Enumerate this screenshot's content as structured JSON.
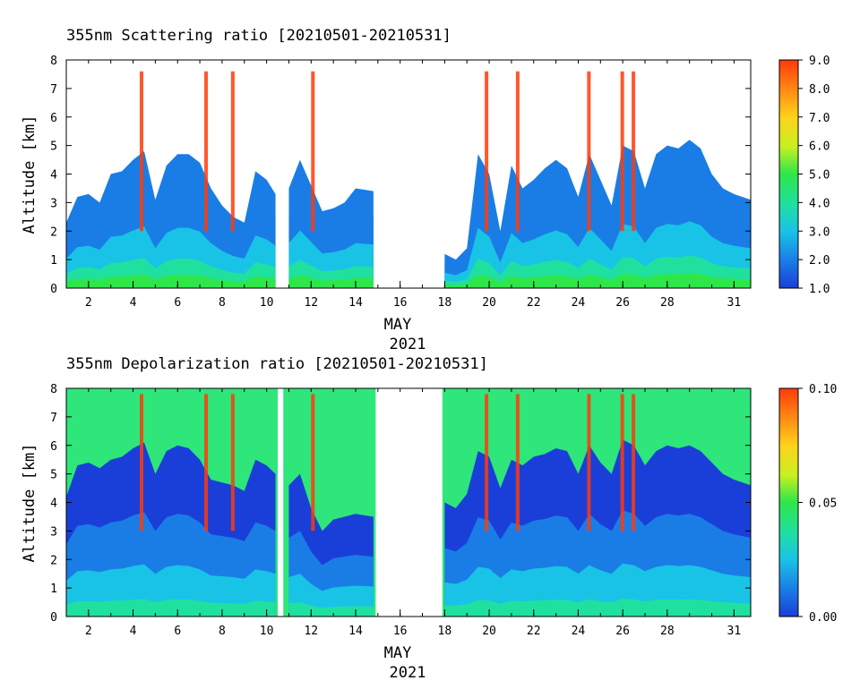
{
  "chart_data": [
    {
      "type": "heatmap",
      "title": "355nm Scattering ratio [20210501-20210531]",
      "ylabel": "Altitude [km]",
      "xlabel": "MAY",
      "xlabel2": "2021",
      "xlim": [
        1,
        31.75
      ],
      "ylim": [
        0,
        8
      ],
      "x_ticks": [
        2,
        4,
        6,
        8,
        10,
        12,
        14,
        16,
        18,
        20,
        22,
        24,
        26,
        28,
        31
      ],
      "y_ticks": [
        0,
        1,
        2,
        3,
        4,
        5,
        6,
        7,
        8
      ],
      "colorbar": {
        "min": 1.0,
        "max": 9.0,
        "ticks": [
          "1.0",
          "2.0",
          "3.0",
          "4.0",
          "5.0",
          "6.0",
          "7.0",
          "8.0",
          "9.0"
        ],
        "colors": [
          "#1a3fd9",
          "#1a7de6",
          "#19c3e6",
          "#20e0a0",
          "#2ee64a",
          "#c8f020",
          "#ffd21a",
          "#ff8a14",
          "#ff3a0a"
        ]
      },
      "no_data_days": [
        [
          10.5,
          10.75
        ],
        [
          14.9,
          17.9
        ]
      ],
      "cloud_top_km": [
        {
          "x": 1.0,
          "top": 2.3
        },
        {
          "x": 1.5,
          "top": 3.2
        },
        {
          "x": 2.0,
          "top": 3.3
        },
        {
          "x": 2.5,
          "top": 3.0
        },
        {
          "x": 3.0,
          "top": 4.0
        },
        {
          "x": 3.5,
          "top": 4.1
        },
        {
          "x": 4.0,
          "top": 4.5
        },
        {
          "x": 4.5,
          "top": 4.8
        },
        {
          "x": 5.0,
          "top": 3.1
        },
        {
          "x": 5.5,
          "top": 4.3
        },
        {
          "x": 6.0,
          "top": 4.7
        },
        {
          "x": 6.5,
          "top": 4.7
        },
        {
          "x": 7.0,
          "top": 4.4
        },
        {
          "x": 7.5,
          "top": 3.5
        },
        {
          "x": 8.0,
          "top": 2.9
        },
        {
          "x": 8.5,
          "top": 2.5
        },
        {
          "x": 9.0,
          "top": 2.3
        },
        {
          "x": 9.5,
          "top": 4.1
        },
        {
          "x": 10.0,
          "top": 3.8
        },
        {
          "x": 10.4,
          "top": 3.3
        },
        {
          "x": 11.0,
          "top": 3.5
        },
        {
          "x": 11.5,
          "top": 4.5
        },
        {
          "x": 12.0,
          "top": 3.6
        },
        {
          "x": 12.5,
          "top": 2.7
        },
        {
          "x": 13.0,
          "top": 2.8
        },
        {
          "x": 13.5,
          "top": 3.0
        },
        {
          "x": 14.0,
          "top": 3.5
        },
        {
          "x": 14.8,
          "top": 3.4
        },
        {
          "x": 18.0,
          "top": 1.2
        },
        {
          "x": 18.5,
          "top": 1.0
        },
        {
          "x": 19.0,
          "top": 1.4
        },
        {
          "x": 19.5,
          "top": 4.7
        },
        {
          "x": 20.0,
          "top": 4.0
        },
        {
          "x": 20.5,
          "top": 2.0
        },
        {
          "x": 21.0,
          "top": 4.3
        },
        {
          "x": 21.5,
          "top": 3.5
        },
        {
          "x": 22.0,
          "top": 3.8
        },
        {
          "x": 22.5,
          "top": 4.2
        },
        {
          "x": 23.0,
          "top": 4.5
        },
        {
          "x": 23.5,
          "top": 4.2
        },
        {
          "x": 24.0,
          "top": 3.2
        },
        {
          "x": 24.5,
          "top": 4.7
        },
        {
          "x": 25.0,
          "top": 3.8
        },
        {
          "x": 25.5,
          "top": 2.9
        },
        {
          "x": 26.0,
          "top": 5.0
        },
        {
          "x": 26.5,
          "top": 4.8
        },
        {
          "x": 27.0,
          "top": 3.5
        },
        {
          "x": 27.5,
          "top": 4.7
        },
        {
          "x": 28.0,
          "top": 5.0
        },
        {
          "x": 28.5,
          "top": 4.9
        },
        {
          "x": 29.0,
          "top": 5.2
        },
        {
          "x": 29.5,
          "top": 4.9
        },
        {
          "x": 30.0,
          "top": 4.0
        },
        {
          "x": 30.5,
          "top": 3.5
        },
        {
          "x": 31.0,
          "top": 3.3
        },
        {
          "x": 31.75,
          "top": 3.1
        }
      ]
    },
    {
      "type": "heatmap",
      "title": "355nm Depolarization ratio [20210501-20210531]",
      "ylabel": "Altitude [km]",
      "xlabel": "MAY",
      "xlabel2": "2021",
      "xlim": [
        1,
        31.75
      ],
      "ylim": [
        0,
        8
      ],
      "x_ticks": [
        2,
        4,
        6,
        8,
        10,
        12,
        14,
        16,
        18,
        20,
        22,
        24,
        26,
        28,
        31
      ],
      "y_ticks": [
        0,
        1,
        2,
        3,
        4,
        5,
        6,
        7,
        8
      ],
      "colorbar": {
        "min": 0.0,
        "max": 0.1,
        "ticks": [
          "0.00",
          "0.05",
          "0.10"
        ],
        "colors": [
          "#1a3fd9",
          "#1a7de6",
          "#19c3e6",
          "#20e0a0",
          "#2ee64a",
          "#c8f020",
          "#ffd21a",
          "#ff8a14",
          "#ff3a0a"
        ]
      },
      "no_data_days": [
        [
          10.5,
          10.75
        ],
        [
          14.9,
          17.9
        ]
      ],
      "cloud_top_km": [
        {
          "x": 1.0,
          "top": 4.2
        },
        {
          "x": 1.5,
          "top": 5.3
        },
        {
          "x": 2.0,
          "top": 5.4
        },
        {
          "x": 2.5,
          "top": 5.2
        },
        {
          "x": 3.0,
          "top": 5.5
        },
        {
          "x": 3.5,
          "top": 5.6
        },
        {
          "x": 4.0,
          "top": 5.9
        },
        {
          "x": 4.5,
          "top": 6.1
        },
        {
          "x": 5.0,
          "top": 5.0
        },
        {
          "x": 5.5,
          "top": 5.8
        },
        {
          "x": 6.0,
          "top": 6.0
        },
        {
          "x": 6.5,
          "top": 5.9
        },
        {
          "x": 7.0,
          "top": 5.5
        },
        {
          "x": 7.5,
          "top": 4.8
        },
        {
          "x": 8.0,
          "top": 4.7
        },
        {
          "x": 8.5,
          "top": 4.6
        },
        {
          "x": 9.0,
          "top": 4.4
        },
        {
          "x": 9.5,
          "top": 5.5
        },
        {
          "x": 10.0,
          "top": 5.3
        },
        {
          "x": 10.4,
          "top": 5.0
        },
        {
          "x": 11.0,
          "top": 4.6
        },
        {
          "x": 11.5,
          "top": 5.0
        },
        {
          "x": 12.0,
          "top": 3.8
        },
        {
          "x": 12.5,
          "top": 3.0
        },
        {
          "x": 13.0,
          "top": 3.4
        },
        {
          "x": 13.5,
          "top": 3.5
        },
        {
          "x": 14.0,
          "top": 3.6
        },
        {
          "x": 14.8,
          "top": 3.5
        },
        {
          "x": 18.0,
          "top": 4.0
        },
        {
          "x": 18.5,
          "top": 3.8
        },
        {
          "x": 19.0,
          "top": 4.3
        },
        {
          "x": 19.5,
          "top": 5.8
        },
        {
          "x": 20.0,
          "top": 5.6
        },
        {
          "x": 20.5,
          "top": 4.5
        },
        {
          "x": 21.0,
          "top": 5.5
        },
        {
          "x": 21.5,
          "top": 5.3
        },
        {
          "x": 22.0,
          "top": 5.6
        },
        {
          "x": 22.5,
          "top": 5.7
        },
        {
          "x": 23.0,
          "top": 5.9
        },
        {
          "x": 23.5,
          "top": 5.8
        },
        {
          "x": 24.0,
          "top": 5.0
        },
        {
          "x": 24.5,
          "top": 6.0
        },
        {
          "x": 25.0,
          "top": 5.4
        },
        {
          "x": 25.5,
          "top": 5.0
        },
        {
          "x": 26.0,
          "top": 6.2
        },
        {
          "x": 26.5,
          "top": 6.0
        },
        {
          "x": 27.0,
          "top": 5.3
        },
        {
          "x": 27.5,
          "top": 5.8
        },
        {
          "x": 28.0,
          "top": 6.0
        },
        {
          "x": 28.5,
          "top": 5.9
        },
        {
          "x": 29.0,
          "top": 6.0
        },
        {
          "x": 29.5,
          "top": 5.8
        },
        {
          "x": 30.0,
          "top": 5.4
        },
        {
          "x": 30.5,
          "top": 5.0
        },
        {
          "x": 31.0,
          "top": 4.8
        },
        {
          "x": 31.75,
          "top": 4.6
        }
      ]
    }
  ]
}
